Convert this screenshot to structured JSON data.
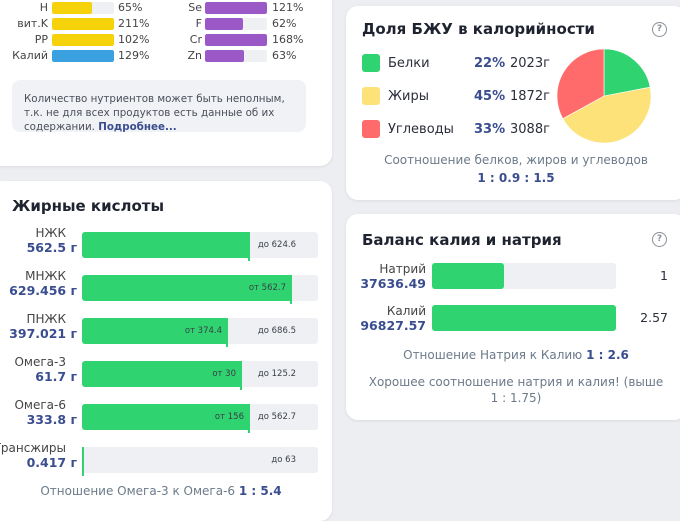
{
  "colors": {
    "green": "#2fd36f",
    "yellow": "#f5d20a",
    "purple": "#9b59c7",
    "blue": "#3aa0e0",
    "fat_yellow": "#fde27a",
    "carb_red": "#ff6b6b",
    "accent": "#3a4d8f"
  },
  "nutrients": {
    "left": [
      {
        "name": "H",
        "pct": "65%",
        "fill": 0.65,
        "color": "yellow"
      },
      {
        "name": "вит.K",
        "pct": "211%",
        "fill": 1.0,
        "color": "yellow"
      },
      {
        "name": "PP",
        "pct": "102%",
        "fill": 1.0,
        "color": "yellow"
      },
      {
        "name": "Калий",
        "pct": "129%",
        "fill": 1.0,
        "color": "blue"
      }
    ],
    "right": [
      {
        "name": "Se",
        "pct": "121%",
        "fill": 1.0,
        "color": "purple"
      },
      {
        "name": "F",
        "pct": "62%",
        "fill": 0.62,
        "color": "purple"
      },
      {
        "name": "Cr",
        "pct": "168%",
        "fill": 1.0,
        "color": "purple"
      },
      {
        "name": "Zn",
        "pct": "63%",
        "fill": 0.63,
        "color": "purple"
      }
    ],
    "note_text": "Количество нутриентов может быть неполным, т.к. не для всех продуктов есть данные об их содержании.",
    "note_link": "Подробнее..."
  },
  "fatty_acids": {
    "title": "Жирные кислоты",
    "items": [
      {
        "name": "НЖК",
        "value": "562.5 г",
        "fill": 0.71,
        "max_label": "до 624.6"
      },
      {
        "name": "МНЖК",
        "value": "629.456 г",
        "fill": 0.89,
        "min_label": "от 562.7"
      },
      {
        "name": "ПНЖК",
        "value": "397.021 г",
        "fill": 0.62,
        "min_label": "от 374.4",
        "max_label": "до 686.5"
      },
      {
        "name": "Омега-3",
        "value": "61.7 г",
        "fill": 0.68,
        "min_label": "от 30",
        "max_label": "до 125.2"
      },
      {
        "name": "Омега-6",
        "value": "333.8 г",
        "fill": 0.71,
        "min_label": "от 156",
        "max_label": "до 562.7"
      },
      {
        "name": "Трансжиры",
        "value": "0.417 г",
        "fill": 0.01,
        "max_label": "до 63"
      }
    ],
    "ratio_label": "Отношение Омега-3 к Омега-6",
    "ratio_value": "1 : 5.4"
  },
  "macros": {
    "title": "Доля БЖУ в калорийности",
    "help": "?",
    "items": [
      {
        "name": "Белки",
        "pct": "22%",
        "grams": "2023г",
        "share": 0.22,
        "color": "#2fd36f"
      },
      {
        "name": "Жиры",
        "pct": "45%",
        "grams": "1872г",
        "share": 0.45,
        "color": "#fde27a"
      },
      {
        "name": "Углеводы",
        "pct": "33%",
        "grams": "3088г",
        "share": 0.33,
        "color": "#ff6b6b"
      }
    ],
    "ratio_label": "Соотношение белков, жиров и углеводов",
    "ratio_value": "1 : 0.9 : 1.5"
  },
  "kna": {
    "title": "Баланс калия и натрия",
    "help": "?",
    "items": [
      {
        "name": "Натрий",
        "value": "37636.49",
        "fill": 0.39,
        "ratio": "1"
      },
      {
        "name": "Калий",
        "value": "96827.57",
        "fill": 1.0,
        "ratio": "2.57"
      }
    ],
    "ratio_label": "Отношение Натрия к Калию",
    "ratio_value": "1 : 2.6",
    "note_line1": "Хорошее соотношение натрия и калия! (выше",
    "note_line2": "1 : 1.75)"
  }
}
